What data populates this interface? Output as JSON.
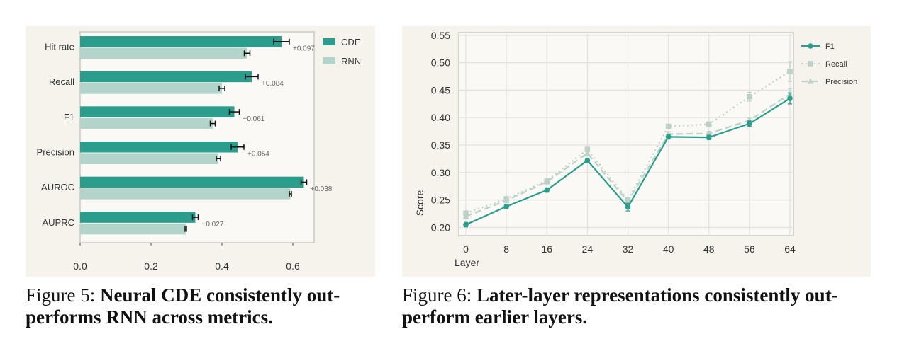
{
  "chart_data": [
    {
      "type": "bar",
      "orientation": "horizontal",
      "categories": [
        "Hit rate",
        "Recall",
        "F1",
        "Precision",
        "AUROC",
        "AUPRC"
      ],
      "series": [
        {
          "name": "CDE",
          "values": [
            0.568,
            0.484,
            0.435,
            0.444,
            0.631,
            0.325
          ],
          "errors": [
            0.022,
            0.018,
            0.014,
            0.018,
            0.008,
            0.008
          ],
          "color": "#2a9d8c"
        },
        {
          "name": "RNN",
          "values": [
            0.471,
            0.4,
            0.374,
            0.39,
            0.593,
            0.298
          ],
          "errors": [
            0.008,
            0.008,
            0.007,
            0.006,
            0.003,
            0.002
          ],
          "color": "#b3d4ca"
        }
      ],
      "annotations": [
        "+0.097",
        "+0.084",
        "+0.061",
        "+0.054",
        "+0.038",
        "+0.027"
      ],
      "xticks": [
        "0.0",
        "0.2",
        "0.4",
        "0.6"
      ],
      "xlim": [
        0,
        0.66
      ],
      "legend_position": "right"
    },
    {
      "type": "line",
      "x": [
        0,
        8,
        16,
        24,
        32,
        40,
        48,
        56,
        64
      ],
      "series": [
        {
          "name": "F1",
          "values": [
            0.205,
            0.238,
            0.268,
            0.322,
            0.237,
            0.365,
            0.364,
            0.389,
            0.435
          ],
          "errors": [
            0.004,
            0.004,
            0.004,
            0.004,
            0.007,
            0.004,
            0.004,
            0.005,
            0.01
          ],
          "color": "#2a9d8c",
          "style": "solid",
          "marker": "circle"
        },
        {
          "name": "Recall",
          "values": [
            0.226,
            0.252,
            0.285,
            0.342,
            0.25,
            0.384,
            0.388,
            0.438,
            0.484
          ],
          "errors": [
            0.004,
            0.004,
            0.004,
            0.004,
            0.004,
            0.004,
            0.004,
            0.008,
            0.018
          ],
          "color": "#bcd2c8",
          "style": "dotted",
          "marker": "square"
        },
        {
          "name": "Precision",
          "values": [
            0.22,
            0.249,
            0.283,
            0.335,
            0.247,
            0.37,
            0.371,
            0.395,
            0.443
          ],
          "errors": [
            0.004,
            0.004,
            0.004,
            0.004,
            0.004,
            0.004,
            0.004,
            0.004,
            0.01
          ],
          "color": "#bcd2c8",
          "style": "dashed",
          "marker": "triangle"
        }
      ],
      "xlabel": "Layer",
      "ylabel": "Score",
      "ylim": [
        0.185,
        0.555
      ],
      "yticks": [
        "0.20",
        "0.25",
        "0.30",
        "0.35",
        "0.40",
        "0.45",
        "0.50",
        "0.55"
      ],
      "xticks": [
        "0",
        "8",
        "16",
        "24",
        "32",
        "40",
        "48",
        "56",
        "64"
      ],
      "grid": true,
      "legend_position": "right"
    }
  ],
  "captions": {
    "left": {
      "label": "Figure 5:",
      "title": "Neural CDE consistently out-performs RNN across metrics."
    },
    "right": {
      "label": "Figure 6:",
      "title": "Later-layer representations consistently out-perform earlier layers."
    }
  }
}
